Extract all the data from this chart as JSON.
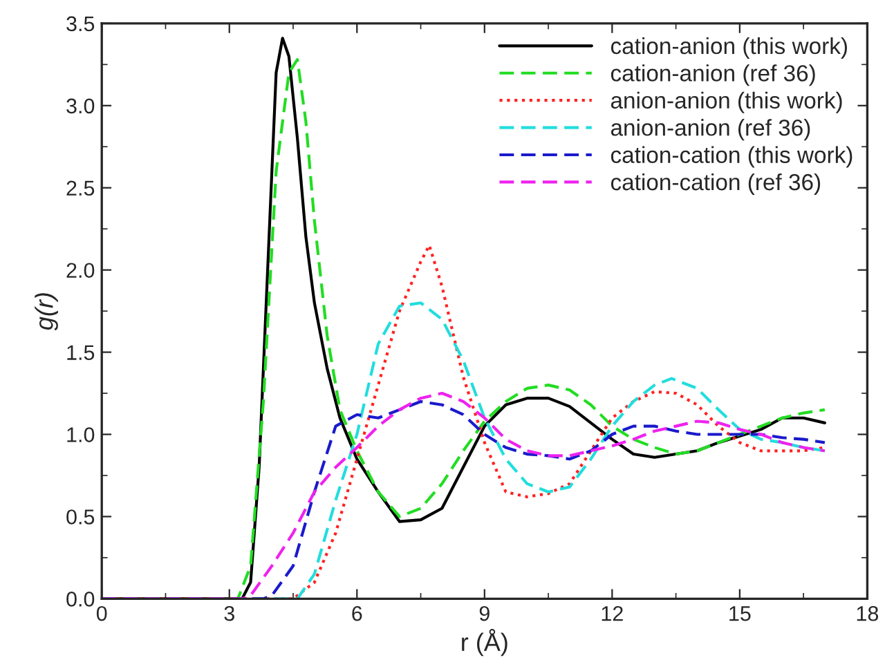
{
  "chart_data": {
    "type": "line",
    "xlabel": "r (Å)",
    "ylabel": "g(r)",
    "xlim": [
      0,
      18
    ],
    "xticks": [
      0,
      3,
      6,
      9,
      12,
      15,
      18
    ],
    "ylim": [
      0,
      3.5
    ],
    "yticks": [
      {
        "value": 0,
        "label": "0.0"
      },
      0.5,
      {
        "value": 1,
        "label": "1.0"
      },
      1.5,
      {
        "value": 2,
        "label": "2.0"
      },
      2.5,
      {
        "value": 3,
        "label": "3.0"
      },
      3.5
    ],
    "grid": false,
    "legend": "top right",
    "marker": "none",
    "series": [
      {
        "name": "cation-anion (this work)",
        "color": "#000000",
        "line_style": "solid",
        "x": [
          0,
          3.3,
          3.5,
          3.7,
          3.9,
          4.1,
          4.25,
          4.4,
          4.6,
          4.8,
          5.0,
          5.3,
          5.6,
          6.0,
          6.5,
          7.0,
          7.5,
          8.0,
          8.5,
          9.0,
          9.5,
          10.0,
          10.5,
          11.0,
          11.5,
          12.0,
          12.5,
          13.0,
          13.5,
          14.0,
          14.5,
          15.0,
          15.5,
          16.0,
          16.5,
          17.0
        ],
        "values": [
          0,
          0,
          0.1,
          0.8,
          2.0,
          3.2,
          3.41,
          3.3,
          2.8,
          2.2,
          1.8,
          1.4,
          1.1,
          0.85,
          0.65,
          0.47,
          0.48,
          0.55,
          0.8,
          1.05,
          1.18,
          1.22,
          1.22,
          1.17,
          1.07,
          0.97,
          0.88,
          0.86,
          0.88,
          0.9,
          0.95,
          0.99,
          1.03,
          1.1,
          1.1,
          1.07
        ]
      },
      {
        "name": "cation-anion (ref 36)",
        "color": "#22dd22",
        "line_style": "dashed",
        "x": [
          0,
          3.2,
          3.5,
          3.8,
          4.1,
          4.4,
          4.6,
          4.8,
          5.0,
          5.3,
          5.6,
          6.0,
          6.5,
          7.0,
          7.5,
          8.0,
          8.5,
          9.0,
          9.5,
          10.0,
          10.5,
          11.0,
          11.5,
          12.0,
          12.5,
          13.0,
          13.5,
          14.0,
          14.5,
          15.0,
          15.5,
          16.0,
          16.5,
          17.0
        ],
        "values": [
          0,
          0,
          0.2,
          1.2,
          2.6,
          3.2,
          3.28,
          2.9,
          2.3,
          1.6,
          1.15,
          0.9,
          0.65,
          0.5,
          0.55,
          0.7,
          0.9,
          1.08,
          1.2,
          1.28,
          1.3,
          1.27,
          1.18,
          1.05,
          0.97,
          0.92,
          0.88,
          0.9,
          0.95,
          1.0,
          1.05,
          1.1,
          1.13,
          1.15
        ]
      },
      {
        "name": "anion-anion (this work)",
        "color": "#ff2222",
        "line_style": "dotted",
        "x": [
          0,
          4.5,
          5.0,
          5.5,
          6.0,
          6.5,
          7.0,
          7.5,
          7.7,
          8.0,
          8.5,
          9.0,
          9.5,
          10.0,
          10.5,
          11.0,
          11.5,
          12.0,
          12.5,
          13.0,
          13.5,
          14.0,
          14.5,
          15.0,
          15.5,
          16.0,
          16.5,
          17.0
        ],
        "values": [
          0,
          0,
          0.1,
          0.4,
          0.85,
          1.3,
          1.75,
          2.05,
          2.15,
          1.9,
          1.35,
          0.95,
          0.65,
          0.62,
          0.64,
          0.7,
          0.9,
          1.1,
          1.2,
          1.26,
          1.25,
          1.18,
          1.05,
          0.95,
          0.9,
          0.9,
          0.9,
          0.92
        ]
      },
      {
        "name": "anion-anion (ref 36)",
        "color": "#22dddd",
        "line_style": "dashed",
        "x": [
          0,
          4.6,
          5.0,
          5.5,
          6.0,
          6.5,
          7.0,
          7.5,
          8.0,
          8.5,
          9.0,
          9.5,
          10.0,
          10.5,
          11.0,
          11.5,
          12.0,
          12.5,
          13.0,
          13.4,
          14.0,
          14.5,
          15.0,
          15.5,
          16.0,
          16.5,
          17.0
        ],
        "values": [
          0,
          0,
          0.15,
          0.6,
          1.0,
          1.55,
          1.78,
          1.8,
          1.7,
          1.45,
          1.1,
          0.85,
          0.7,
          0.65,
          0.68,
          0.85,
          1.05,
          1.2,
          1.3,
          1.34,
          1.28,
          1.15,
          1.03,
          0.97,
          0.95,
          0.92,
          0.9
        ]
      },
      {
        "name": "cation-cation (this work)",
        "color": "#1a1acc",
        "line_style": "dashed",
        "x": [
          0,
          3.8,
          4.0,
          4.5,
          5.0,
          5.5,
          6.0,
          6.5,
          7.0,
          7.5,
          8.0,
          8.5,
          9.0,
          9.5,
          10.0,
          10.5,
          11.0,
          11.5,
          12.0,
          12.5,
          13.0,
          13.5,
          14.0,
          14.5,
          15.0,
          15.5,
          16.0,
          16.5,
          17.0
        ],
        "values": [
          0,
          0,
          0.02,
          0.2,
          0.65,
          1.05,
          1.12,
          1.1,
          1.15,
          1.2,
          1.18,
          1.12,
          1.0,
          0.92,
          0.88,
          0.87,
          0.85,
          0.9,
          1.0,
          1.05,
          1.05,
          1.02,
          1.0,
          1.0,
          1.0,
          1.0,
          0.98,
          0.97,
          0.95
        ]
      },
      {
        "name": "cation-cation (ref 36)",
        "color": "#ee22ee",
        "line_style": "dashed",
        "x": [
          0,
          3.3,
          3.5,
          4.0,
          4.5,
          5.0,
          5.5,
          6.0,
          6.5,
          7.0,
          7.5,
          8.0,
          8.5,
          9.0,
          9.5,
          10.0,
          10.5,
          11.0,
          11.5,
          12.0,
          12.5,
          13.0,
          13.5,
          14.0,
          14.5,
          15.0,
          15.5,
          16.0,
          16.5,
          17.0
        ],
        "values": [
          0,
          0,
          0.02,
          0.2,
          0.4,
          0.65,
          0.8,
          0.92,
          1.05,
          1.15,
          1.22,
          1.25,
          1.2,
          1.1,
          0.97,
          0.9,
          0.87,
          0.87,
          0.9,
          0.93,
          0.97,
          1.02,
          1.05,
          1.08,
          1.07,
          1.03,
          1.0,
          0.95,
          0.92,
          0.9
        ]
      }
    ]
  }
}
